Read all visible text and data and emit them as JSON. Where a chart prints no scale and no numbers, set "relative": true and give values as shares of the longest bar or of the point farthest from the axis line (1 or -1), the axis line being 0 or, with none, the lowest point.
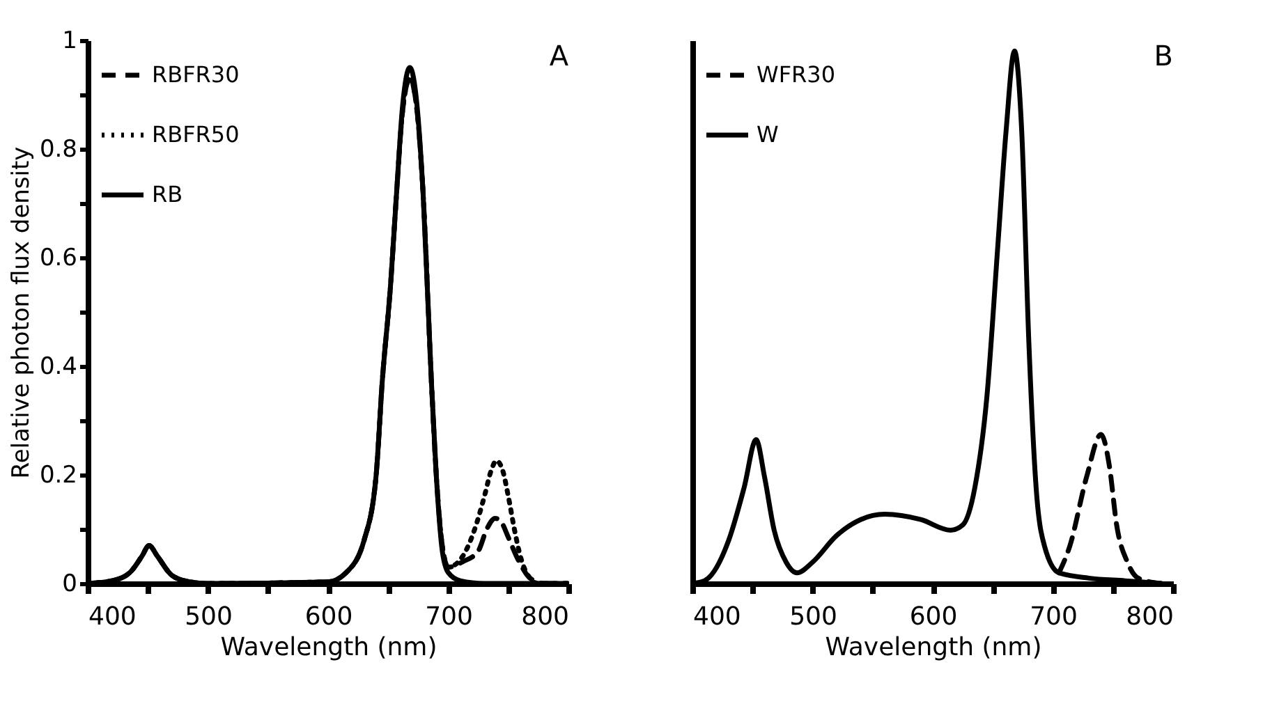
{
  "chart_data": [
    {
      "type": "line",
      "xlabel": "Wavelength (nm)",
      "ylabel": "Relative photon flux density",
      "annotations": [
        "A"
      ],
      "legend": "top left",
      "xlim": [
        400,
        800
      ],
      "xticks": [
        400,
        {
          "value": 450,
          "label": null
        },
        500,
        {
          "value": 550,
          "label": null
        },
        600,
        {
          "value": 650,
          "label": null
        },
        700,
        {
          "value": 750,
          "label": null
        },
        800
      ],
      "ylim": [
        0,
        1
      ],
      "yticks": [
        0,
        {
          "value": 0.1,
          "label": null
        },
        "0.2",
        {
          "value": 0.3,
          "label": null
        },
        0.4,
        {
          "value": 0.5,
          "label": null
        },
        0.6,
        {
          "value": 0.7,
          "label": null
        },
        0.8,
        {
          "value": 0.9,
          "label": null
        },
        1
      ],
      "series": [
        {
          "name": "RBFR30",
          "color": "#000000",
          "line_style": "dashed",
          "x": [
            400,
            420,
            435,
            445,
            451,
            458,
            470,
            485,
            500,
            600,
            615,
            630,
            640,
            645,
            652,
            657,
            662,
            668,
            674,
            679,
            686,
            690,
            695,
            700,
            712,
            725,
            732,
            739,
            745,
            749,
            759,
            768,
            780,
            800
          ],
          "values": [
            0,
            0.005,
            0.02,
            0.05,
            0.07,
            0.05,
            0.015,
            0.003,
            0,
            0.003,
            0.02,
            0.08,
            0.2,
            0.37,
            0.55,
            0.72,
            0.87,
            0.93,
            0.87,
            0.72,
            0.37,
            0.2,
            0.07,
            0.03,
            0.04,
            0.06,
            0.1,
            0.12,
            0.11,
            0.09,
            0.04,
            0.01,
            0,
            0
          ]
        },
        {
          "name": "RBFR50",
          "color": "#000000",
          "line_style": "dotted",
          "x": [
            400,
            420,
            435,
            445,
            451,
            458,
            470,
            485,
            500,
            600,
            615,
            630,
            640,
            645,
            652,
            657,
            662,
            668,
            674,
            679,
            686,
            690,
            695,
            700,
            712,
            722,
            730,
            736,
            740,
            745,
            750,
            755,
            760,
            765,
            775,
            800
          ],
          "values": [
            0,
            0.005,
            0.02,
            0.05,
            0.07,
            0.05,
            0.015,
            0.003,
            0,
            0.003,
            0.02,
            0.08,
            0.2,
            0.37,
            0.55,
            0.72,
            0.87,
            0.93,
            0.87,
            0.72,
            0.37,
            0.2,
            0.07,
            0.03,
            0.05,
            0.1,
            0.16,
            0.21,
            0.226,
            0.21,
            0.16,
            0.1,
            0.05,
            0.02,
            0,
            0
          ]
        },
        {
          "name": "RB",
          "color": "#000000",
          "line_style": "solid",
          "x": [
            400,
            420,
            435,
            445,
            451,
            458,
            470,
            485,
            500,
            600,
            615,
            630,
            640,
            645,
            652,
            657,
            662,
            668,
            674,
            679,
            686,
            690,
            695,
            700,
            710,
            730,
            800
          ],
          "values": [
            0,
            0.005,
            0.02,
            0.05,
            0.07,
            0.05,
            0.015,
            0.003,
            0,
            0.003,
            0.02,
            0.08,
            0.2,
            0.37,
            0.55,
            0.72,
            0.88,
            0.95,
            0.88,
            0.72,
            0.37,
            0.2,
            0.06,
            0.02,
            0.005,
            0,
            0
          ]
        }
      ]
    },
    {
      "type": "line",
      "xlabel": "Wavelength (nm)",
      "annotations": [
        "B"
      ],
      "legend": "top left",
      "relative": true,
      "xlim": [
        400,
        800
      ],
      "xticks": [
        400,
        {
          "value": 450,
          "label": null
        },
        500,
        {
          "value": 550,
          "label": null
        },
        600,
        {
          "value": 650,
          "label": null
        },
        700,
        {
          "value": 750,
          "label": null
        },
        800
      ],
      "series": [
        {
          "name": "WFR30",
          "color": "#000000",
          "line_style": "dashed",
          "x": [
            705,
            714,
            728,
            740,
            747,
            753,
            762,
            771,
            790
          ],
          "values": [
            0.02,
            0.07,
            0.2,
            0.28,
            0.22,
            0.11,
            0.04,
            0.01,
            0
          ]
        },
        {
          "name": "W",
          "color": "#000000",
          "line_style": "solid",
          "x": [
            400,
            410,
            430,
            443,
            453,
            460,
            468,
            478,
            487,
            500,
            520,
            540,
            560,
            590,
            615,
            625,
            635,
            645,
            654,
            661,
            668,
            674,
            680,
            686,
            693,
            705,
            730,
            760,
            790
          ],
          "values": [
            0,
            0.005,
            0.08,
            0.18,
            0.27,
            0.2,
            0.1,
            0.04,
            0.02,
            0.04,
            0.09,
            0.12,
            0.13,
            0.12,
            0.1,
            0.11,
            0.18,
            0.35,
            0.63,
            0.85,
            1,
            0.85,
            0.45,
            0.18,
            0.07,
            0.02,
            0.01,
            0.005,
            0
          ]
        }
      ]
    }
  ]
}
